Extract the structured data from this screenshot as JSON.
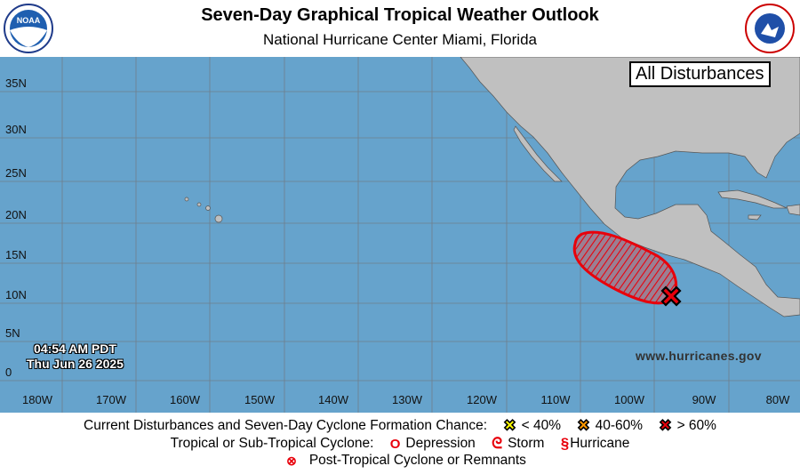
{
  "header": {
    "title": "Seven-Day Graphical Tropical Weather Outlook",
    "subtitle": "National Hurricane Center  Miami, Florida",
    "left_logo": "NOAA",
    "right_logo": "NATIONAL WEATHER SERVICE"
  },
  "map": {
    "filter_label": "All Disturbances",
    "website": "www.hurricanes.gov",
    "time": "04:54 AM PDT",
    "date": "Thu Jun 26 2025",
    "lat_labels": [
      "35N",
      "30N",
      "25N",
      "20N",
      "15N",
      "10N",
      "5N",
      "0"
    ],
    "lon_labels": [
      "180W",
      "170W",
      "160W",
      "150W",
      "140W",
      "130W",
      "120W",
      "110W",
      "100W",
      "90W",
      "80W"
    ],
    "colors": {
      "ocean": "#66a3cc",
      "land": "#c0c0c0",
      "grid": "#6f7f8c",
      "disturbance": "#e8000b"
    },
    "disturbances": [
      {
        "chance": "> 60%",
        "marker": "red-x-icon",
        "area": "hatched-red-area"
      }
    ]
  },
  "legend": {
    "row1_label": "Current Disturbances and Seven-Day Cyclone Formation Chance:",
    "low": "< 40%",
    "medium": "40-60%",
    "high": "> 60%",
    "row2_label": "Tropical or Sub-Tropical Cyclone:",
    "depression": "Depression",
    "storm": "Storm",
    "hurricane": "Hurricane",
    "post_tropical": "Post-Tropical Cyclone or Remnants",
    "colors": {
      "low": "#ffff00",
      "medium": "#ff9900",
      "high": "#e8000b"
    }
  }
}
